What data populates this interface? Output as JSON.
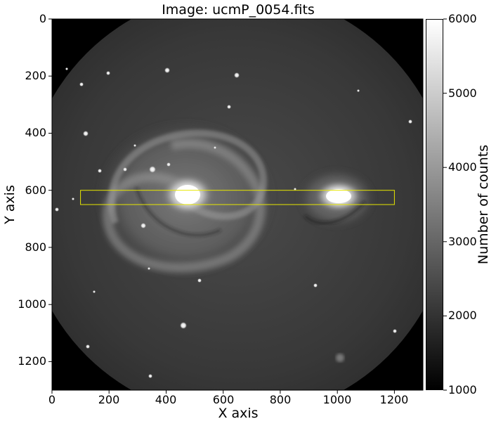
{
  "figure": {
    "title": "Image: ucmP_0054.fits",
    "xlabel": "X axis",
    "ylabel": "Y axis",
    "colorbar_label": "Number of counts",
    "x_ticks": [
      "0",
      "200",
      "400",
      "600",
      "800",
      "1000",
      "1200"
    ],
    "y_ticks": [
      "0",
      "200",
      "400",
      "600",
      "800",
      "1000",
      "1200"
    ],
    "colorbar_ticks": [
      "1000",
      "2000",
      "3000",
      "4000",
      "5000",
      "6000"
    ],
    "highlight_box_color": "#e6e600",
    "colormap": "gray"
  },
  "chart_data": {
    "type": "heatmap",
    "title": "Image: ucmP_0054.fits",
    "xlabel": "X axis",
    "ylabel": "Y axis",
    "xlim": [
      0,
      1300
    ],
    "ylim": [
      1300,
      0
    ],
    "colorbar": {
      "label": "Number of counts",
      "range": [
        1000,
        6000
      ],
      "colormap": "gray"
    },
    "highlight_box": {
      "x": [
        100,
        1200
      ],
      "y": [
        600,
        650
      ],
      "color": "#e6e600"
    }
  }
}
